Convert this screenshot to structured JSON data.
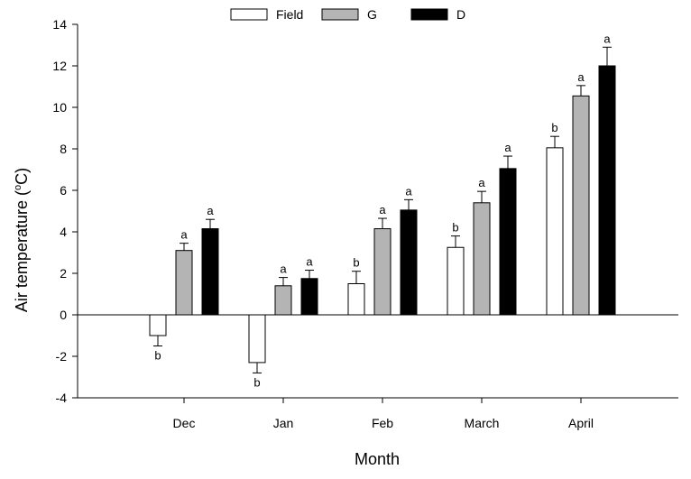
{
  "chart_data": {
    "type": "bar",
    "xlabel": "Month",
    "ylabel_prefix": "Air temperature (",
    "ylabel_sup": "o",
    "ylabel_suffix": "C)",
    "ylim": [
      -4,
      14
    ],
    "yticks": [
      -4,
      -2,
      0,
      2,
      4,
      6,
      8,
      10,
      12,
      14
    ],
    "categories": [
      "Dec",
      "Jan",
      "Feb",
      "March",
      "April"
    ],
    "legend_position": "top-center",
    "series": [
      {
        "name": "Field",
        "color": "#ffffff",
        "values": [
          -1.0,
          -2.3,
          1.5,
          3.25,
          8.05
        ],
        "errors": [
          0.5,
          0.5,
          0.6,
          0.55,
          0.55
        ],
        "letters": [
          "b",
          "b",
          "b",
          "b",
          "b"
        ]
      },
      {
        "name": "G",
        "color": "#b4b4b4",
        "values": [
          3.1,
          1.4,
          4.15,
          5.4,
          10.55
        ],
        "errors": [
          0.35,
          0.4,
          0.5,
          0.55,
          0.5
        ],
        "letters": [
          "a",
          "a",
          "a",
          "a",
          "a"
        ]
      },
      {
        "name": "D",
        "color": "#000000",
        "values": [
          4.15,
          1.75,
          5.05,
          7.05,
          12.0
        ],
        "errors": [
          0.45,
          0.4,
          0.5,
          0.6,
          0.9
        ],
        "letters": [
          "a",
          "a",
          "a",
          "a",
          "a"
        ]
      }
    ]
  }
}
